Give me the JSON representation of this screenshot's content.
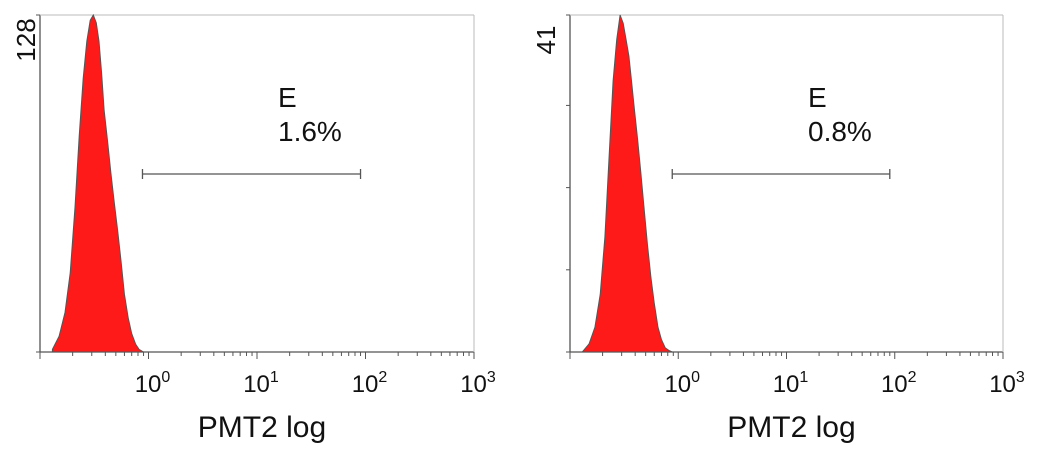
{
  "colors": {
    "fill": "#ff1a1a",
    "outline": "#555555",
    "axis": "#555555",
    "text": "#111111"
  },
  "chart_data": [
    {
      "type": "area",
      "xscale": "log",
      "xlabel": "PMT2 log",
      "xlim": [
        0.1,
        1000
      ],
      "x_ticks": [
        {
          "base": "10",
          "exp": "0"
        },
        {
          "base": "10",
          "exp": "1"
        },
        {
          "base": "10",
          "exp": "2"
        },
        {
          "base": "10",
          "exp": "3"
        }
      ],
      "ymax_label": "128",
      "ylim": [
        0,
        128
      ],
      "y_minor_ticks": [
        0,
        128
      ],
      "gate": {
        "label": "E",
        "percent": "1.6%",
        "range": [
          0.88,
          90
        ]
      },
      "histogram": {
        "x": [
          0.13,
          0.15,
          0.17,
          0.19,
          0.21,
          0.23,
          0.25,
          0.27,
          0.29,
          0.31,
          0.33,
          0.35,
          0.37,
          0.39,
          0.42,
          0.45,
          0.48,
          0.52,
          0.56,
          0.6,
          0.65,
          0.7,
          0.76,
          0.82,
          0.9
        ],
        "y": [
          1,
          6,
          15,
          30,
          55,
          82,
          104,
          118,
          126,
          128,
          125,
          118,
          106,
          92,
          80,
          68,
          58,
          46,
          34,
          22,
          13,
          7,
          3,
          1,
          0
        ]
      }
    },
    {
      "type": "area",
      "xscale": "log",
      "xlabel": "PMT2 log",
      "xlim": [
        0.1,
        1000
      ],
      "x_ticks": [
        {
          "base": "10",
          "exp": "0"
        },
        {
          "base": "10",
          "exp": "1"
        },
        {
          "base": "10",
          "exp": "2"
        },
        {
          "base": "10",
          "exp": "3"
        }
      ],
      "ymax_label": "41",
      "ylim": [
        0,
        41
      ],
      "y_minor_ticks": [
        0,
        10,
        20,
        30,
        41
      ],
      "gate": {
        "label": "E",
        "percent": "0.8%",
        "range": [
          0.88,
          90
        ]
      },
      "histogram": {
        "x": [
          0.13,
          0.15,
          0.17,
          0.19,
          0.21,
          0.23,
          0.25,
          0.27,
          0.29,
          0.31,
          0.33,
          0.35,
          0.37,
          0.39,
          0.42,
          0.45,
          0.48,
          0.52,
          0.56,
          0.6,
          0.65,
          0.7,
          0.76,
          0.82,
          0.88
        ],
        "y": [
          0,
          1,
          3,
          7,
          14,
          24,
          33,
          38,
          41,
          40,
          38,
          36,
          33,
          30,
          26,
          22,
          18,
          13,
          9,
          6,
          3,
          1.5,
          0.5,
          0.2,
          0
        ]
      }
    }
  ]
}
